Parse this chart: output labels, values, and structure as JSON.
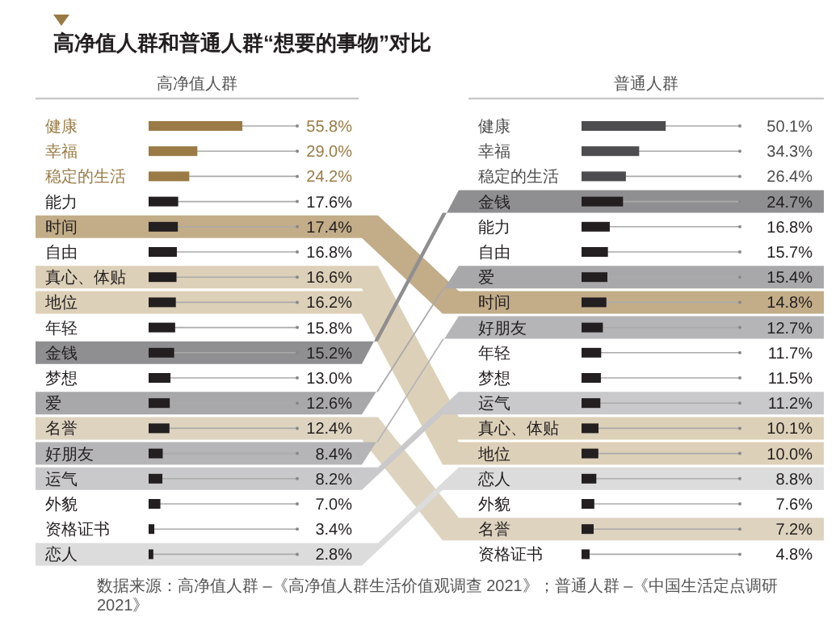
{
  "chart_data": [
    {
      "type": "bar",
      "orientation": "horizontal",
      "tick_labels": false,
      "grid": "y",
      "title": "高净值人群和普通人群“想要的事物”对比",
      "subtitle": "高净值人群",
      "categories": [
        "健康",
        "幸福",
        "稳定的生活",
        "能力",
        "时间",
        "自由",
        "真心、体贴",
        "地位",
        "年轻",
        "金钱",
        "梦想",
        "爱",
        "名誉",
        "好朋友",
        "运气",
        "外貌",
        "资格证书",
        "恋人"
      ],
      "values": [
        55.8,
        29.0,
        24.2,
        17.6,
        17.4,
        16.8,
        16.6,
        16.2,
        15.8,
        15.2,
        13.0,
        12.6,
        12.4,
        8.4,
        8.2,
        7.0,
        3.4,
        2.8
      ],
      "value_labels": [
        "55.8%",
        "29.0%",
        "24.2%",
        "17.6%",
        "17.4%",
        "16.8%",
        "16.6%",
        "16.2%",
        "15.8%",
        "15.2%",
        "13.0%",
        "12.6%",
        "12.4%",
        "8.4%",
        "8.2%",
        "7.0%",
        "3.4%",
        "2.8%"
      ],
      "colors": [
        "#9a7b45",
        "#9a7b45",
        "#9a7b45",
        "#231f20",
        "#231f20",
        "#231f20",
        "#231f20",
        "#231f20",
        "#231f20",
        "#231f20",
        "#231f20",
        "#231f20",
        "#231f20",
        "#231f20",
        "#231f20",
        "#231f20",
        "#231f20",
        "#231f20"
      ]
    },
    {
      "type": "bar",
      "orientation": "horizontal",
      "tick_labels": false,
      "grid": "y",
      "subtitle": "普通人群",
      "categories": [
        "健康",
        "幸福",
        "稳定的生活",
        "金钱",
        "能力",
        "自由",
        "爱",
        "时间",
        "好朋友",
        "年轻",
        "梦想",
        "运气",
        "真心、体贴",
        "地位",
        "恋人",
        "外貌",
        "名誉",
        "资格证书"
      ],
      "values": [
        50.1,
        34.3,
        26.4,
        24.7,
        16.8,
        15.7,
        15.4,
        14.8,
        12.7,
        11.7,
        11.5,
        11.2,
        10.1,
        10.0,
        8.8,
        7.6,
        7.2,
        4.8
      ],
      "value_labels": [
        "50.1%",
        "34.3%",
        "26.4%",
        "24.7%",
        "16.8%",
        "15.7%",
        "15.4%",
        "14.8%",
        "12.7%",
        "11.7%",
        "11.5%",
        "11.2%",
        "10.1%",
        "10.0%",
        "8.8%",
        "7.6%",
        "7.2%",
        "4.8%"
      ],
      "colors": [
        "#4d4d4f",
        "#4d4d4f",
        "#4d4d4f",
        "#231f20",
        "#231f20",
        "#231f20",
        "#231f20",
        "#231f20",
        "#231f20",
        "#231f20",
        "#231f20",
        "#231f20",
        "#231f20",
        "#231f20",
        "#231f20",
        "#231f20",
        "#231f20",
        "#231f20"
      ],
      "annotations": [
        "数据来源：高净值人群 –《高净值人群生活价值观调查 2021》；普通人群 –《中国生活定点调研 2021》"
      ]
    }
  ]
}
